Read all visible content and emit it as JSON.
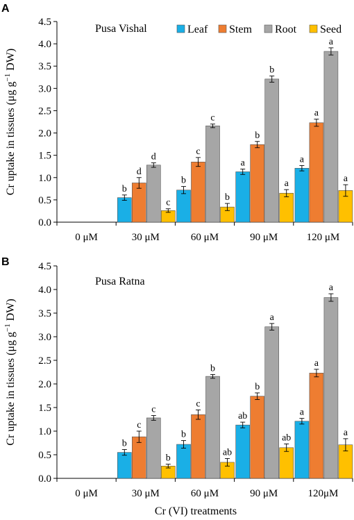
{
  "x_axis_title": "Cr (VI) treatments",
  "colors": {
    "Leaf": "#1aafe6",
    "Stem": "#ee7d31",
    "Root": "#a6a6a6",
    "Seed": "#ffc000"
  },
  "chart_data": [
    {
      "type": "bar",
      "panel": "A",
      "subtitle": "Pusa Vishal",
      "ylabel_prefix": "Cr uptake in tissues (μg g",
      "ylabel_sup": "−1",
      "ylabel_suffix": " DW)",
      "ylim": [
        0,
        4.5
      ],
      "yticks": [
        "0.0",
        "0.5",
        "1.0",
        "1.5",
        "2.0",
        "2.5",
        "3.0",
        "3.5",
        "4.0",
        "4.5"
      ],
      "legend": "top-right",
      "categories": [
        "0 μM",
        "30 μM",
        "60 μM",
        "90 μM",
        "120 μM"
      ],
      "series": [
        {
          "name": "Leaf",
          "values": [
            0,
            0.55,
            0.72,
            1.13,
            1.21
          ],
          "errors": [
            0,
            0.06,
            0.08,
            0.06,
            0.06
          ],
          "labels": [
            "",
            "b",
            "b",
            "a",
            "a"
          ]
        },
        {
          "name": "Stem",
          "values": [
            0,
            0.88,
            1.35,
            1.74,
            2.23
          ],
          "errors": [
            0,
            0.12,
            0.1,
            0.07,
            0.08
          ],
          "labels": [
            "",
            "d",
            "c",
            "b",
            "a"
          ]
        },
        {
          "name": "Root",
          "values": [
            0,
            1.28,
            2.16,
            3.21,
            3.83
          ],
          "errors": [
            0,
            0.05,
            0.04,
            0.07,
            0.08
          ],
          "labels": [
            "",
            "d",
            "c",
            "b",
            "a"
          ]
        },
        {
          "name": "Seed",
          "values": [
            0,
            0.26,
            0.34,
            0.65,
            0.71
          ],
          "errors": [
            0,
            0.04,
            0.08,
            0.08,
            0.13
          ],
          "labels": [
            "",
            "c",
            "b",
            "a",
            "a"
          ]
        }
      ]
    },
    {
      "type": "bar",
      "panel": "B",
      "subtitle": "Pusa Ratna",
      "ylabel_prefix": "Cr uptake in tissues (μg g",
      "ylabel_sup": "−1",
      "ylabel_suffix": " DW)",
      "ylim": [
        0,
        4.5
      ],
      "yticks": [
        "0.0",
        "0.5",
        "1.0",
        "1.5",
        "2.0",
        "2.5",
        "3.0",
        "3.5",
        "4.0",
        "4.5"
      ],
      "categories": [
        "0 μM",
        "30 μM",
        "60 μM",
        "90 μM",
        "120μM"
      ],
      "series": [
        {
          "name": "Leaf",
          "values": [
            0,
            0.55,
            0.72,
            1.13,
            1.21
          ],
          "errors": [
            0,
            0.06,
            0.08,
            0.06,
            0.06
          ],
          "labels": [
            "",
            "b",
            "b",
            "ab",
            "a"
          ]
        },
        {
          "name": "Stem",
          "values": [
            0,
            0.88,
            1.35,
            1.74,
            2.23
          ],
          "errors": [
            0,
            0.12,
            0.1,
            0.07,
            0.08
          ],
          "labels": [
            "",
            "c",
            "c",
            "b",
            "a"
          ]
        },
        {
          "name": "Root",
          "values": [
            0,
            1.28,
            2.16,
            3.21,
            3.83
          ],
          "errors": [
            0,
            0.05,
            0.04,
            0.07,
            0.08
          ],
          "labels": [
            "",
            "c",
            "b",
            "a",
            "a"
          ]
        },
        {
          "name": "Seed",
          "values": [
            0,
            0.26,
            0.34,
            0.65,
            0.71
          ],
          "errors": [
            0,
            0.04,
            0.08,
            0.08,
            0.13
          ],
          "labels": [
            "",
            "b",
            "ab",
            "ab",
            "a"
          ]
        }
      ]
    }
  ]
}
